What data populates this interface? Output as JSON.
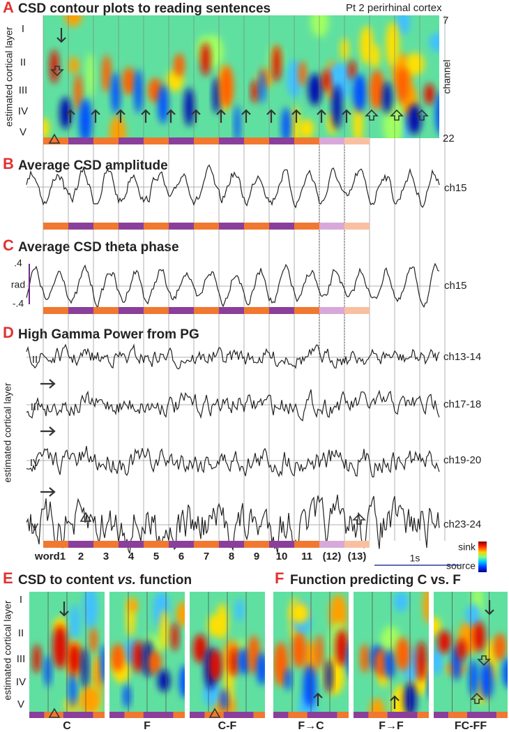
{
  "panel_a": {
    "letter": "A",
    "title": "CSD contour plots to reading sentences",
    "subtitle": "Pt 2 perirhinal cortex",
    "y_label": "estimated cortical layer",
    "layers": [
      "I",
      "II",
      "III",
      "IV",
      "V"
    ],
    "channel_top": "7",
    "channel_label": "channel",
    "channel_bottom": "22"
  },
  "panel_b": {
    "letter": "B",
    "title": "Average CSD amplitude",
    "channel": "ch15"
  },
  "panel_c": {
    "letter": "C",
    "title": "Average CSD theta phase",
    "y_top": ".4",
    "y_unit": "rad",
    "y_bottom": "-.4",
    "channel": "ch15"
  },
  "panel_d": {
    "letter": "D",
    "title": "High Gamma Power from PG",
    "y_label": "estimated cortical layer",
    "traces": [
      {
        "layer": "II",
        "channel": "ch13-14"
      },
      {
        "layer": "III",
        "channel": "ch17-18"
      },
      {
        "layer": "IV",
        "channel": "ch19-20"
      },
      {
        "layer": "V",
        "channel": "ch23-24"
      }
    ]
  },
  "words": [
    "word1",
    "2",
    "3",
    "4",
    "5",
    "6",
    "7",
    "8",
    "9",
    "10",
    "11",
    "(12)",
    "(13)"
  ],
  "colorbar": {
    "top": "sink",
    "bottom": "source"
  },
  "scale_bar": "1s",
  "panel_e": {
    "letter": "E",
    "title_start": "CSD to content ",
    "title_em": "vs.",
    "title_end": " function",
    "y_label": "estimated cortical layer",
    "layers": [
      "I",
      "II",
      "III",
      "IV",
      "V"
    ],
    "plots": [
      "C",
      "F",
      "C-F"
    ]
  },
  "panel_f": {
    "letter": "F",
    "title": "Function predicting C vs. F",
    "plots": [
      "F→C",
      "F→F",
      "FC-FF"
    ]
  }
}
